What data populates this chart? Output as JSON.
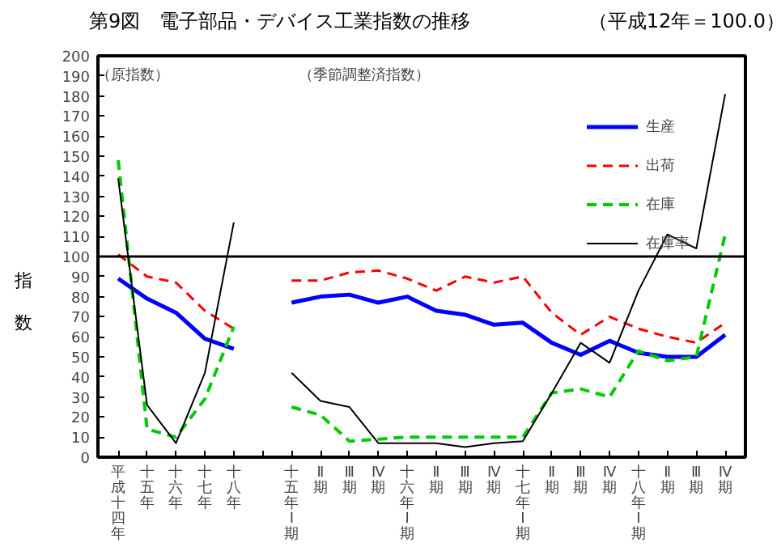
{
  "chart_data": {
    "type": "line",
    "title": "第9図　電子部品・デバイス工業指数の推移",
    "subtitle": "（平成12年＝100.0）",
    "ylabel": "指数",
    "annotations": [
      "（原指数）",
      "（季節調整済指数）"
    ],
    "categories": [
      "平成十四年",
      "十五年",
      "十六年",
      "十七年",
      "十八年",
      null,
      "十五年Ⅰ期",
      "Ⅱ期",
      "Ⅲ期",
      "Ⅳ期",
      "十六年Ⅰ期",
      "Ⅱ期",
      "Ⅲ期",
      "Ⅳ期",
      "十七年Ⅰ期",
      "Ⅱ期",
      "Ⅲ期",
      "Ⅳ期",
      "十八年Ⅰ期",
      "Ⅱ期",
      "Ⅲ期",
      "Ⅳ期"
    ],
    "series": [
      {
        "name": "生産",
        "color": "#0000ff",
        "line_style": "solid",
        "values": [
          89,
          79,
          72,
          59,
          54,
          null,
          77,
          80,
          81,
          77,
          80,
          73,
          71,
          66,
          67,
          57,
          51,
          58,
          52,
          50,
          50,
          61
        ]
      },
      {
        "name": "出荷",
        "color": "#ff0000",
        "line_style": "dashed",
        "values": [
          101,
          90,
          87,
          73,
          64,
          null,
          88,
          88,
          92,
          93,
          89,
          83,
          90,
          87,
          90,
          72,
          61,
          70,
          64,
          60,
          57,
          67
        ]
      },
      {
        "name": "在庫",
        "color": "#00cc00",
        "line_style": "dashed",
        "values": [
          148,
          14,
          10,
          29,
          65,
          null,
          25,
          21,
          8,
          9,
          10,
          10,
          10,
          10,
          10,
          32,
          34,
          30,
          53,
          48,
          50,
          111
        ]
      },
      {
        "name": "在庫率",
        "color": "#000000",
        "line_style": "solid",
        "values": [
          139,
          26,
          7,
          42,
          117,
          null,
          42,
          28,
          25,
          7,
          7,
          7,
          5,
          7,
          8,
          32,
          57,
          47,
          83,
          111,
          104,
          181
        ]
      }
    ],
    "ylim": [
      0,
      200
    ],
    "yticks": [
      0,
      10,
      20,
      30,
      40,
      50,
      60,
      70,
      80,
      90,
      100,
      110,
      120,
      130,
      140,
      150,
      160,
      170,
      180,
      190,
      200
    ],
    "ref_lines": [
      {
        "axis": "y",
        "value": 100,
        "color": "#000000"
      }
    ],
    "grid": false,
    "legend": "top right",
    "marker": "none"
  }
}
